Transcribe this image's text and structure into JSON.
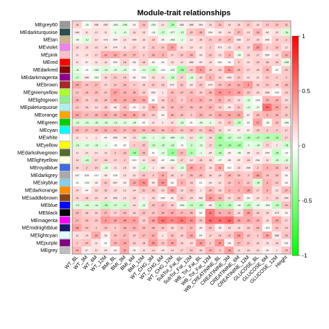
{
  "chart_data": {
    "type": "heatmap",
    "title": "Module-trait relationships",
    "rows": [
      "MEgrey60",
      "MEdarkturquoise",
      "MEtan",
      "MEviolet",
      "MEpink",
      "MEred",
      "MEdarkred",
      "MEdarkmagenta",
      "MEbrown",
      "MEgreenyellow",
      "MElightgreen",
      "MEpaleturquoise",
      "MEorange",
      "MEgreen",
      "MEcyan",
      "MEwhite",
      "MEyellow",
      "MEdarkolivegreen",
      "MElightyellow",
      "MEroyalblue",
      "MEdarkgrey",
      "MEskyblue",
      "MEdarkorange",
      "MEsaddlebrown",
      "MEblue",
      "MEblack",
      "MEmagenta",
      "MEmidnightblue",
      "MElightcyan",
      "MEpurple",
      "MEgrey"
    ],
    "row_colors": [
      "#999999",
      "#2f4f4f",
      "#d2b48c",
      "#ee82ee",
      "#ffc0cb",
      "#ff0000",
      "#8b0000",
      "#8b008b",
      "#a52a2a",
      "#adff2f",
      "#90ee90",
      "#afeeee",
      "#ffa500",
      "#00cc00",
      "#00ffff",
      "#ffffff",
      "#ffff00",
      "#556b2f",
      "#ffffe0",
      "#4169e1",
      "#a9a9a9",
      "#87ceeb",
      "#ff8c00",
      "#8b4513",
      "#0000ff",
      "#000000",
      "#ff00ff",
      "#191970",
      "#e0ffff",
      "#800080",
      "#bebebe"
    ],
    "columns": [
      "WT_BL",
      "WT_3M",
      "WT_6M",
      "WT_12M",
      "BMI_BL",
      "BMI_3M",
      "BMI_6M",
      "BMI_12M",
      "WT_CHG_3M",
      "WT_CHG_6M",
      "WT_CHG_12M",
      "SubTot_Fat_BL",
      "SubTot_Fat_12M",
      "WB_Tot_Fat_BL",
      "WB_Tot_Fat_12M",
      "WB_CREATININE_BL",
      "CREATININE_3M",
      "CREATININE_6M",
      "CREATININE_12M",
      "GLUCOSE_BL",
      "GLUCOSE_6M",
      "GLUCOSE_12M",
      "Height"
    ],
    "colorbar": {
      "ticks": [
        1,
        0.5,
        0,
        -0.5,
        -1
      ],
      "low": "#00ff00",
      "mid": "#ffffff",
      "high": "#ff0000",
      "range": [
        -1,
        1
      ]
    },
    "values": [
      [
        0.18,
        -0.03,
        0.088,
        0.089,
        -0.053,
        -0.098,
        0.04,
        0.24,
        -0.053,
        0.11,
        -0.25,
        0.065,
        0.088,
        0.064,
        0.14,
        0.24,
        0.14,
        0.15,
        0.21,
        0.14,
        0.21,
        0.23,
        0.21
      ],
      [
        0.066,
        0.11,
        0.12,
        0.11,
        -0.1,
        -0.11,
        0.14,
        0.13,
        -0.04,
        -0.17,
        -0.077,
        -0.13,
        0.22,
        0.28,
        0.034,
        0.09,
        0.14,
        0.27,
        0.13,
        0.28,
        0.09,
        0.12,
        -0.16
      ],
      [
        -0.06,
        -0.12,
        0.12,
        0.073,
        0.054,
        0.12,
        0.095,
        0.13,
        0.18,
        0.05,
        -0.053,
        -0.1,
        0.12,
        0.16,
        0.21,
        0.22,
        0.27,
        0.086,
        0.17,
        0.15,
        0.059,
        0.19,
        0.2
      ],
      [
        0.15,
        0.15,
        0.15,
        0.14,
        0.079,
        0.11,
        0.17,
        0.12,
        0.21,
        0.21,
        0.37,
        0.11,
        0.13,
        0.12,
        0.2,
        0.073,
        0.12,
        0.19,
        0.15,
        0.39,
        0.2,
        0.23,
        0.12
      ],
      [
        0.11,
        0.12,
        0.17,
        0.33,
        0.33,
        0.26,
        0.27,
        0.2,
        0.28,
        0.3,
        0.17,
        0.22,
        0.28,
        0.09,
        0.22,
        0.13,
        0.3,
        -0.08,
        0.16,
        0.17,
        0.054,
        0.12,
        0.31
      ],
      [
        0.11,
        0.07,
        0.11,
        0.13,
        0.025,
        0.18,
        0.06,
        0.18,
        0.04,
        0.03,
        0.13,
        0.12,
        0.086,
        0.09,
        0.13,
        0.031,
        0.03,
        0.2,
        0.12,
        0.19,
        0.18,
        0.19,
        -0.098
      ],
      [
        -0.11,
        -0.01,
        -0.084,
        -0.14,
        -0.11,
        -0.12,
        0.02,
        -0.12,
        -0.21,
        -0.011,
        -0.043,
        -0.36,
        0.22,
        0.4,
        0.18,
        0.18,
        0.41,
        0.26,
        0.17,
        0.16,
        0.28,
        0.02,
        0.21
      ],
      [
        -0.17,
        0.066,
        -0.051,
        0.16,
        0.21,
        0.19,
        0.05,
        0.034,
        0.13,
        0.12,
        -0.18,
        0.17,
        -0.14,
        0.16,
        0.3,
        0.16,
        0.094,
        0.21,
        0.12,
        0.12,
        0.21,
        0.2,
        0.2
      ],
      [
        0.34,
        0.24,
        0.27,
        0.17,
        0.21,
        0.26,
        0.2,
        0.16,
        0.21,
        0.18,
        0.072,
        0.22,
        0.09,
        0.22,
        0.073,
        0.24,
        0.29,
        0.31,
        0.4,
        0.19,
        0.22,
        0.18,
        0.26
      ],
      [
        0.21,
        0.25,
        0.25,
        0.21,
        0.37,
        0.29,
        0.28,
        0.19,
        0.063,
        0.1,
        0.25,
        0.24,
        0.25,
        0.19,
        0.28,
        0.42,
        0.4,
        0.35,
        0.22,
        0.15,
        0.098,
        0.016,
        0.19
      ],
      [
        0.28,
        0.19,
        0.22,
        0.24,
        0.33,
        0.33,
        0.34,
        0.33,
        0.02,
        0.18,
        0.3,
        0.2,
        0.3,
        0.31,
        0.24,
        0.31,
        0.21,
        0.12,
        -0.12,
        0.018,
        0.29,
        0.29,
        0.14
      ],
      [
        0.21,
        0.19,
        0.14,
        0.18,
        0.08,
        0.23,
        0.03,
        0.12,
        0.32,
        0.16,
        0.26,
        0.27,
        0.25,
        0.25,
        0.29,
        0.19,
        0.09,
        0.21,
        -0.12,
        -0.07,
        0.56,
        0.35,
        0.21
      ],
      [
        0.34,
        0.27,
        0.28,
        0.33,
        0.28,
        0.35,
        0.34,
        0.25,
        0.19,
        0.04,
        0.28,
        0.24,
        0.2,
        0.29,
        0.24,
        0.34,
        0.34,
        0.34,
        0.07,
        0.25,
        0.3,
        0.28,
        0.21
      ],
      [
        -0.15,
        -0.15,
        -0.15,
        -0.15,
        -0.13,
        -0.11,
        -0.09,
        0.02,
        0.11,
        0.1,
        0.12,
        -0.14,
        0.01,
        -0.09,
        -0.1,
        0.12,
        0.22,
        -0.22,
        0.03,
        0.37,
        -0.05,
        0.24,
        -0.056
      ],
      [
        0.29,
        0.27,
        0.28,
        0.31,
        0.31,
        0.27,
        0.31,
        0.29,
        0.29,
        0.26,
        0.3,
        0.23,
        0.25,
        0.21,
        0.29,
        0.16,
        0.07,
        0.07,
        0.07,
        0.19,
        0.2,
        0.2,
        0.17
      ],
      [
        0.11,
        0.1,
        0.1,
        0.04,
        0.065,
        0.09,
        0.13,
        -0.16,
        -0.1,
        -0.13,
        -0.084,
        -0.12,
        0.12,
        -0.17,
        0.14,
        -0.36,
        -0.22,
        -0.14,
        -0.26,
        -0.27,
        -0.29,
        -0.31,
        0.17
      ],
      [
        -0.16,
        -0.12,
        -0.14,
        -0.1,
        -0.02,
        0.02,
        0.2,
        0.22,
        -0.19,
        -0.19,
        -0.18,
        -0.01,
        -0.2,
        -0.11,
        0.17,
        -0.34,
        -0.33,
        -0.33,
        -0.1,
        -0.14,
        0.17,
        0.1,
        -0.18
      ],
      [
        0.11,
        0.12,
        0.12,
        0.13,
        0.2,
        0.23,
        -0.33,
        0.25,
        0.01,
        -0.11,
        -0.4,
        0.27,
        -0.3,
        -0.1,
        0.09,
        -0.26,
        0.05,
        -0.08,
        0.08,
        0.12,
        0.044,
        -0.24,
        -0.02
      ],
      [
        0.14,
        -0.18,
        0.17,
        0.18,
        0.17,
        0.2,
        0.013,
        0.11,
        0.18,
        0.02,
        -0.061,
        0.17,
        0.12,
        0.18,
        0.15,
        -0.07,
        0.06,
        0.09,
        0.16,
        0.054,
        0.12,
        -0.15,
        -0.13
      ],
      [
        0.16,
        0.2,
        0.19,
        -0.13,
        0.11,
        0.15,
        0.05,
        -0.2,
        0.1,
        0.082,
        0.13,
        -0.13,
        0.35,
        0.3,
        0.13,
        0.32,
        0.012,
        0.13,
        0.069,
        0.2,
        0.3,
        0.26,
        0.18
      ],
      [
        0.037,
        0.025,
        -0.017,
        0.08,
        0.015,
        0.12,
        0.12,
        0.22,
        0.2,
        0.31,
        0.16,
        0.17,
        0.25,
        0.25,
        0.16,
        0.15,
        0.28,
        0.23,
        0.2,
        0.36,
        0.23,
        0.23,
        0.04
      ],
      [
        -0.01,
        -0.029,
        0.06,
        0.22,
        0.067,
        0.05,
        0.33,
        0.43,
        0.09,
        0.42,
        0.03,
        0.3,
        0.18,
        0.01,
        0.09,
        0.12,
        0.23,
        0.3,
        0.21,
        -0.16,
        0.3,
        0.22,
        0.03
      ],
      [
        0.14,
        0.04,
        0.16,
        0.18,
        0.15,
        0.12,
        0.14,
        0.22,
        0.23,
        0.15,
        0.35,
        0.15,
        0.24,
        0.1,
        0.26,
        0.16,
        0.3,
        0.3,
        0.35,
        0.17,
        0.3,
        0.12,
        0.27
      ],
      [
        0.16,
        0.18,
        0.15,
        0.14,
        0.096,
        0.12,
        0.16,
        0.1,
        0.15,
        0.034,
        0.06,
        0.21,
        0.15,
        0.082,
        0.39,
        0.29,
        0.14,
        0.23,
        0.04,
        0.13,
        0.2,
        0.16,
        0.094
      ],
      [
        -0.13,
        -0.16,
        -0.14,
        -0.26,
        -0.17,
        -0.2,
        0.14,
        -0.11,
        0.23,
        0.27,
        0.19,
        -0.054,
        -0.21,
        -0.23,
        0.08,
        -0.3,
        -0.25,
        -0.06,
        -0.23,
        -0.09,
        -0.052,
        -0.23,
        0.24
      ],
      [
        0.25,
        0.18,
        0.16,
        0.27,
        0.17,
        0.24,
        0.16,
        0.24,
        0.22,
        0.28,
        0.32,
        0.27,
        0.26,
        0.02,
        0.51,
        0.31,
        0.31,
        0.13,
        0.36,
        0.18,
        0.15,
        0.073,
        0.04
      ],
      [
        0.27,
        0.23,
        0.22,
        0.4,
        0.35,
        0.38,
        0.37,
        0.19,
        0.36,
        0.54,
        0.47,
        0.53,
        0.43,
        0.22,
        0.56,
        0.54,
        0.58,
        0.35,
        0.33,
        0.29,
        0.14,
        0.33,
        0.17
      ],
      [
        0.36,
        0.24,
        0.2,
        0.23,
        0.2,
        0.28,
        0.31,
        0.25,
        0.26,
        0.22,
        0.15,
        0.21,
        0.27,
        0.06,
        0.24,
        0.05,
        0.14,
        0.13,
        0.18,
        0.26,
        -0.022,
        0.22,
        0.19
      ],
      [
        0.12,
        0.14,
        0.33,
        0.08,
        0.24,
        0.27,
        0.19,
        0.27,
        0.31,
        0.1,
        0.23,
        0.18,
        0.33,
        0.04,
        0.17,
        0.18,
        0.21,
        0.38,
        0.22,
        0.2,
        0.35,
        0.086,
        0.23
      ],
      [
        0.2,
        0.24,
        0.11,
        0.02,
        0.29,
        0.34,
        0.19,
        0.18,
        0.39,
        0.22,
        0.35,
        0.16,
        0.14,
        0.39,
        0.2,
        0.41,
        0.05,
        0.27,
        0.21,
        0.16,
        0.13,
        0.16,
        0.031
      ],
      [
        0.29,
        0.07,
        0.12,
        0.09,
        0.04,
        0.33,
        0.05,
        0.12,
        0.14,
        0.09,
        0.14,
        0.17,
        0.22,
        0.15,
        0.29,
        0.2,
        0.36,
        0.12,
        0.15,
        0.14,
        0.05,
        0.1,
        0.23
      ]
    ]
  }
}
